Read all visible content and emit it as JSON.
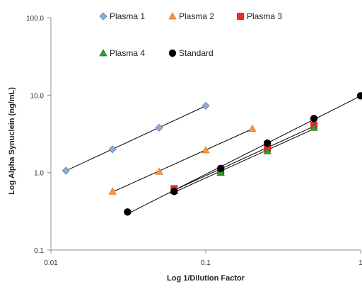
{
  "chart_data": {
    "type": "scatter",
    "title": "",
    "xlabel": "Log 1/Dilution Factor",
    "ylabel": "Log Alpha Synuclein (ng/mL)",
    "xscale": "log",
    "yscale": "log",
    "xlim": [
      0.01,
      1
    ],
    "ylim": [
      0.1,
      100
    ],
    "x_ticks": [
      0.01,
      0.1,
      1
    ],
    "x_tick_labels": [
      "0.01",
      "0.1",
      "1"
    ],
    "y_ticks": [
      0.1,
      1,
      10,
      100
    ],
    "y_tick_labels": [
      "0.1",
      "1.0",
      "10.0",
      "100.0"
    ],
    "grid": false,
    "legend_position": "top",
    "trendlines": true,
    "series": [
      {
        "name": "Plasma 1",
        "marker": "diamond",
        "color": "#8eacd6",
        "stroke": "#5b7fb8",
        "x": [
          0.0125,
          0.025,
          0.05,
          0.1
        ],
        "y": [
          1.06,
          2.0,
          3.8,
          7.3
        ]
      },
      {
        "name": "Plasma 2",
        "marker": "triangle",
        "color": "#f79646",
        "stroke": "#e07b1f",
        "x": [
          0.025,
          0.05,
          0.1,
          0.2
        ],
        "y": [
          0.57,
          1.03,
          1.95,
          3.7
        ]
      },
      {
        "name": "Plasma 3",
        "marker": "square",
        "color": "#ee2b2b",
        "stroke": "#cc1111",
        "x": [
          0.0625,
          0.125,
          0.25,
          0.5
        ],
        "y": [
          0.62,
          1.06,
          2.05,
          4.1
        ]
      },
      {
        "name": "Plasma 4",
        "marker": "triangle",
        "color": "#2ca02c",
        "stroke": "#1d7a1d",
        "x": [
          0.0625,
          0.125,
          0.25,
          0.5
        ],
        "y": [
          0.58,
          1.0,
          1.9,
          3.8
        ]
      },
      {
        "name": "Standard",
        "marker": "circle",
        "color": "#000000",
        "stroke": "#000000",
        "x": [
          0.03125,
          0.0625,
          0.125,
          0.25,
          0.5,
          1.0
        ],
        "y": [
          0.31,
          0.57,
          1.13,
          2.4,
          5.0,
          9.8
        ]
      }
    ]
  }
}
